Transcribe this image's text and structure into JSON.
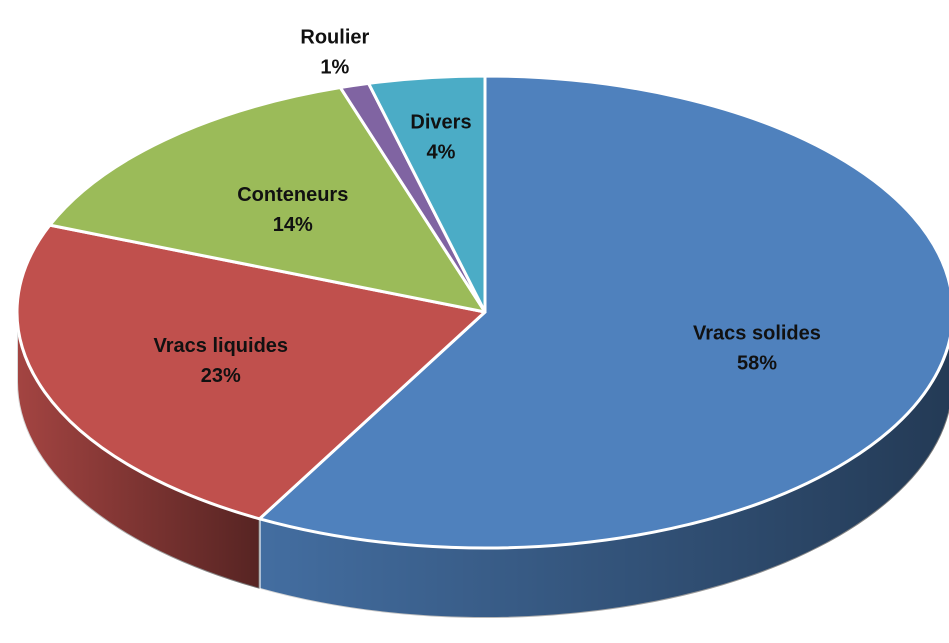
{
  "chart_data": {
    "type": "pie3d",
    "categories": [
      "Vracs solides",
      "Vracs liquides",
      "Conteneurs",
      "Roulier",
      "Divers"
    ],
    "values": [
      58,
      23,
      14,
      1,
      4
    ],
    "value_labels": [
      "58%",
      "23%",
      "14%",
      "1%",
      "4%"
    ],
    "colors": [
      "#4f81bd",
      "#c0504d",
      "#9bbb59",
      "#8064a2",
      "#4bacc6"
    ]
  }
}
